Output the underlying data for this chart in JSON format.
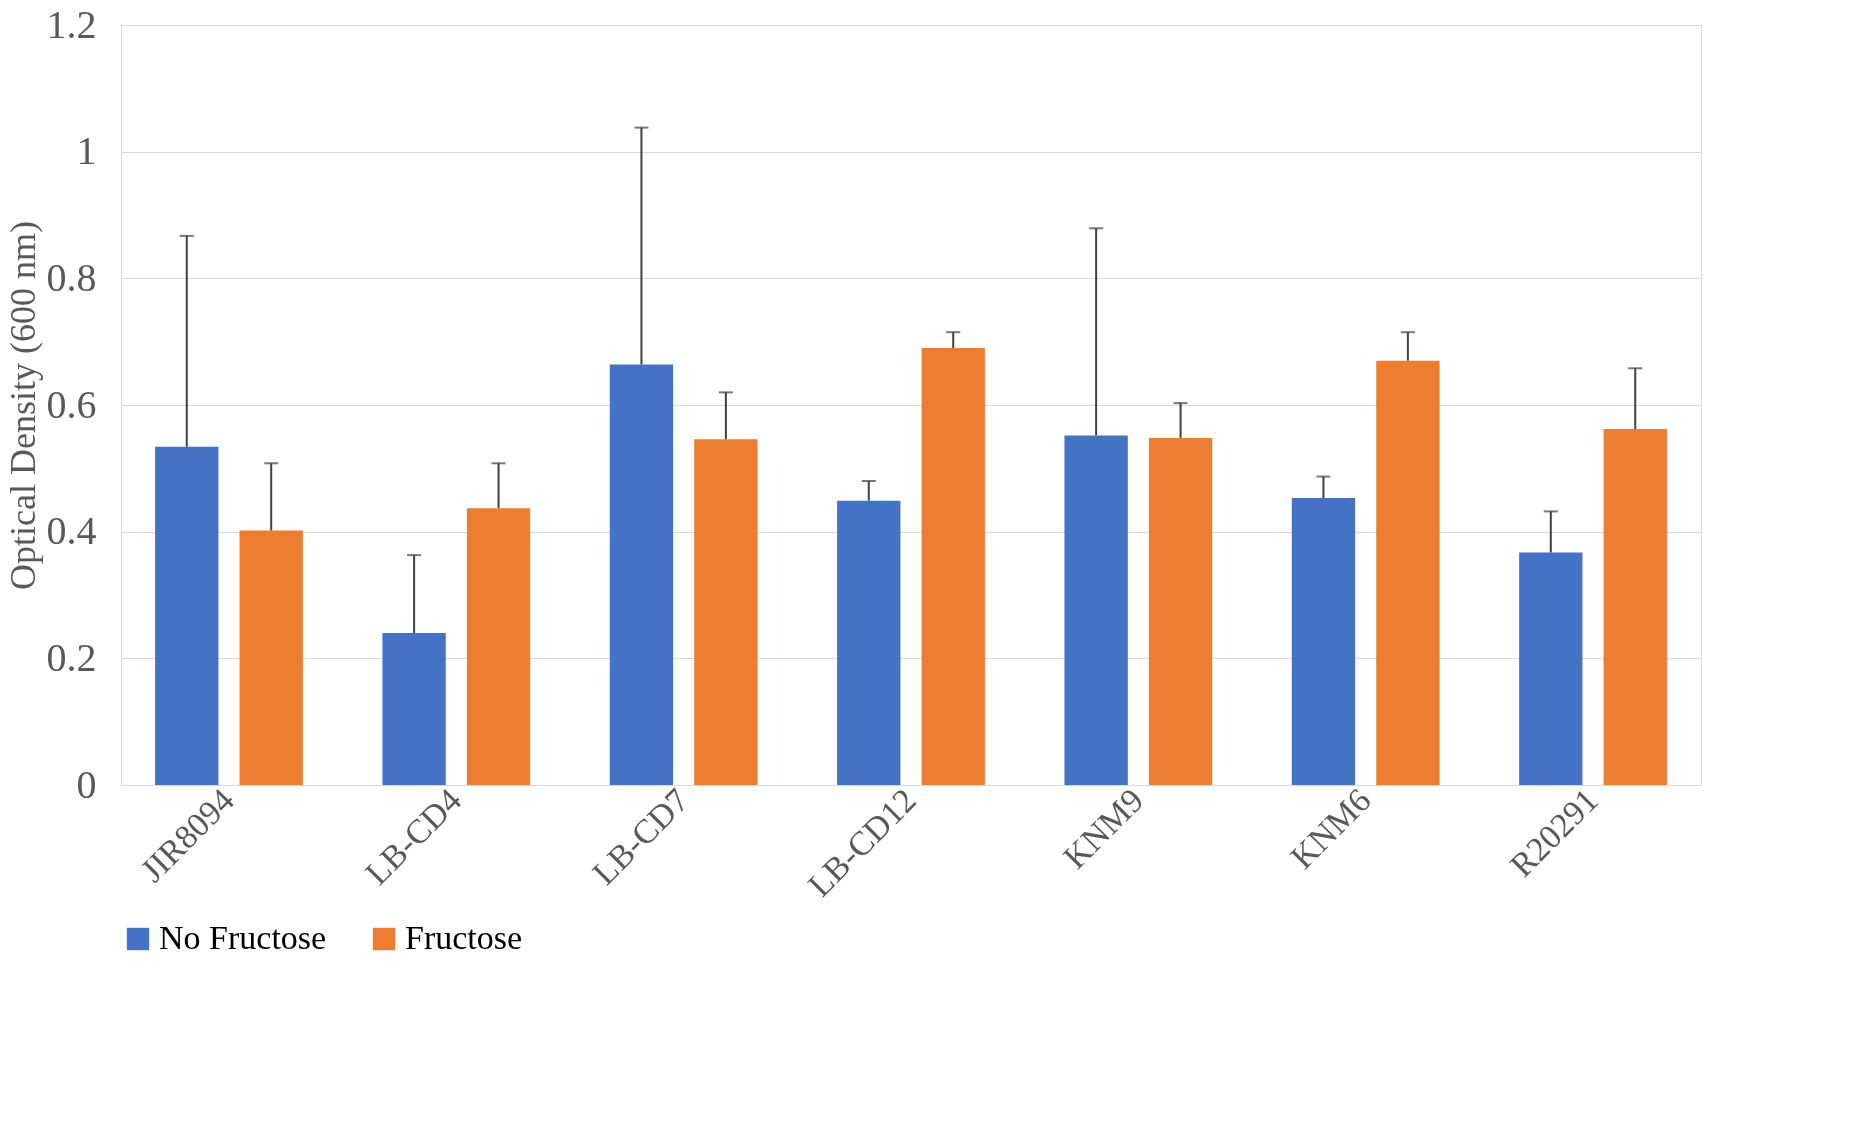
{
  "chart_data": {
    "type": "bar",
    "ylabel": "Optical Density (600 nm)",
    "categories": [
      "JIR8094",
      "LB-CD4",
      "LB-CD7",
      "LB-CD12",
      "KNM9",
      "KNM6",
      "R20291"
    ],
    "series": [
      {
        "name": "No Fructose",
        "color": "#4472c4",
        "values": [
          0.534,
          0.24,
          0.664,
          0.449,
          0.552,
          0.453,
          0.367
        ],
        "errors": [
          [
            0.534,
            0.867
          ],
          [
            0.24,
            0.363
          ],
          [
            0.664,
            1.038
          ],
          [
            0.449,
            0.48
          ],
          [
            0.552,
            0.879
          ],
          [
            0.453,
            0.487
          ],
          [
            0.367,
            0.432
          ]
        ]
      },
      {
        "name": "Fructose",
        "color": "#ed7d31",
        "values": [
          0.402,
          0.437,
          0.546,
          0.69,
          0.548,
          0.67,
          0.562
        ],
        "errors": [
          [
            0.402,
            0.508
          ],
          [
            0.437,
            0.508
          ],
          [
            0.546,
            0.62
          ],
          [
            0.69,
            0.715
          ],
          [
            0.548,
            0.603
          ],
          [
            0.67,
            0.715
          ],
          [
            0.562,
            0.658
          ]
        ]
      }
    ],
    "ylim": [
      0,
      1.2
    ],
    "yticks": [
      0,
      0.2,
      0.4,
      0.6,
      0.8,
      1,
      1.2
    ],
    "grid": "y",
    "legend": "bottom"
  }
}
